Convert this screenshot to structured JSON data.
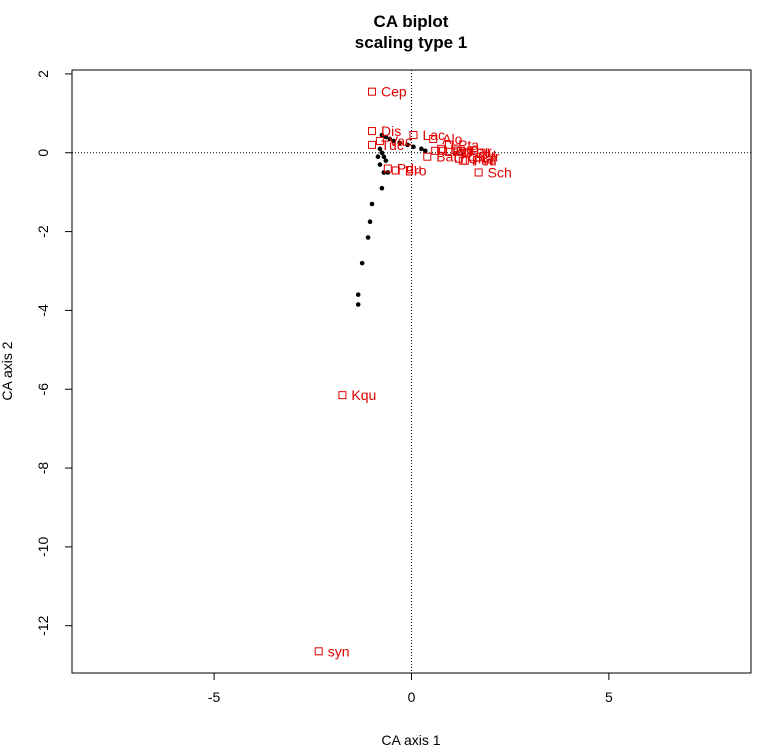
{
  "chart_data": {
    "type": "scatter",
    "title": "CA biplot",
    "subtitle": "scaling type 1",
    "xlabel": "CA axis 1",
    "ylabel": "CA axis 2",
    "xlim": [
      -8.6,
      8.6
    ],
    "ylim": [
      -13.2,
      2.1
    ],
    "x_ticks": [
      -5,
      0,
      5
    ],
    "y_ticks": [
      2,
      0,
      -2,
      -4,
      -6,
      -8,
      -10,
      -12
    ],
    "reference_lines": {
      "x": 0,
      "y": 0,
      "style": "dotted"
    },
    "colors": {
      "species": "#e00000",
      "sites": "#000000"
    },
    "species": [
      {
        "label": "Cep",
        "x": -1.0,
        "y": 1.55
      },
      {
        "label": "Dis",
        "x": -1.0,
        "y": 0.55
      },
      {
        "label": "Lac",
        "x": 0.05,
        "y": 0.45
      },
      {
        "label": "Alo",
        "x": 0.55,
        "y": 0.35
      },
      {
        "label": "Vac",
        "x": -0.8,
        "y": 0.3
      },
      {
        "label": "Pta",
        "x": 0.95,
        "y": 0.2
      },
      {
        "label": "Tuc",
        "x": -1.0,
        "y": 0.2
      },
      {
        "label": "Ecu",
        "x": 0.75,
        "y": 0.1
      },
      {
        "label": "Lam",
        "x": 0.6,
        "y": 0.05
      },
      {
        "label": "Par",
        "x": 1.25,
        "y": 0.05
      },
      {
        "label": "Ppl",
        "x": 0.8,
        "y": 0.05
      },
      {
        "label": "Blu",
        "x": 1.4,
        "y": 0.0
      },
      {
        "label": "Ptr",
        "x": 1.55,
        "y": -0.1
      },
      {
        "label": "Bat",
        "x": 0.4,
        "y": -0.1
      },
      {
        "label": "Cha",
        "x": 1.2,
        "y": -0.15
      },
      {
        "label": "Ped",
        "x": 1.3,
        "y": -0.2
      },
      {
        "label": "Pvi",
        "x": 1.35,
        "y": -0.2
      },
      {
        "label": "Pdu",
        "x": -0.6,
        "y": -0.4
      },
      {
        "label": "Bro",
        "x": -0.4,
        "y": -0.45
      },
      {
        "label": "Sch",
        "x": 1.7,
        "y": -0.5
      },
      {
        "label": "Kqu",
        "x": -1.75,
        "y": -6.15
      },
      {
        "label": "syn",
        "x": -2.35,
        "y": -12.65
      }
    ],
    "sites": [
      {
        "x": -0.75,
        "y": 0.45
      },
      {
        "x": -0.65,
        "y": 0.4
      },
      {
        "x": -0.55,
        "y": 0.35
      },
      {
        "x": -0.45,
        "y": 0.3
      },
      {
        "x": -0.3,
        "y": 0.25
      },
      {
        "x": -0.1,
        "y": 0.2
      },
      {
        "x": 0.05,
        "y": 0.15
      },
      {
        "x": 0.25,
        "y": 0.1
      },
      {
        "x": 0.35,
        "y": 0.05
      },
      {
        "x": -0.8,
        "y": 0.1
      },
      {
        "x": -0.75,
        "y": 0.0
      },
      {
        "x": -0.85,
        "y": -0.1
      },
      {
        "x": -0.7,
        "y": -0.1
      },
      {
        "x": -0.8,
        "y": -0.3
      },
      {
        "x": -0.65,
        "y": -0.2
      },
      {
        "x": -0.7,
        "y": -0.5
      },
      {
        "x": -0.6,
        "y": -0.5
      },
      {
        "x": -0.75,
        "y": -0.9
      },
      {
        "x": -1.0,
        "y": -1.3
      },
      {
        "x": -1.05,
        "y": -1.75
      },
      {
        "x": -1.1,
        "y": -2.15
      },
      {
        "x": -1.25,
        "y": -2.8
      },
      {
        "x": -1.35,
        "y": -3.6
      },
      {
        "x": -1.35,
        "y": -3.85
      }
    ]
  }
}
